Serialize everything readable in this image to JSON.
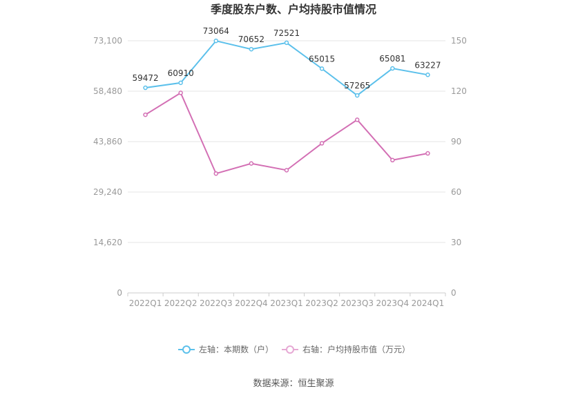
{
  "chart_data": {
    "type": "line",
    "title": "季度股东户数、户均持股市值情况",
    "categories": [
      "2022Q1",
      "2022Q2",
      "2022Q3",
      "2022Q4",
      "2023Q1",
      "2023Q2",
      "2023Q3",
      "2023Q4",
      "2024Q1"
    ],
    "left_axis": {
      "ylim": [
        0,
        73100
      ],
      "ticks": [
        "0",
        "14,620",
        "29,240",
        "43,860",
        "58,480",
        "73,100"
      ],
      "tick_values": [
        0,
        14620,
        29240,
        43860,
        58480,
        73100
      ]
    },
    "right_axis": {
      "ylim": [
        0,
        150
      ],
      "ticks": [
        "0",
        "30",
        "60",
        "90",
        "120",
        "150"
      ],
      "tick_values": [
        0,
        30,
        60,
        90,
        120,
        150
      ]
    },
    "series": [
      {
        "name": "左轴：本期数（户）",
        "axis": "left",
        "color": "#5bc0eb",
        "values": [
          59472,
          60910,
          73064,
          70652,
          72521,
          65015,
          57265,
          65081,
          63227
        ],
        "labels": [
          "59472",
          "60910",
          "73064",
          "70652",
          "72521",
          "65015",
          "57265",
          "65081",
          "63227"
        ]
      },
      {
        "name": "右轴：户均持股市值（万元）",
        "axis": "right",
        "color": "#d36fb4",
        "values": [
          106,
          119,
          71,
          77,
          73,
          89,
          103,
          79,
          83
        ]
      }
    ],
    "legend_position": "bottom",
    "grid": true
  },
  "footer": {
    "source": "数据来源：恒生聚源"
  }
}
